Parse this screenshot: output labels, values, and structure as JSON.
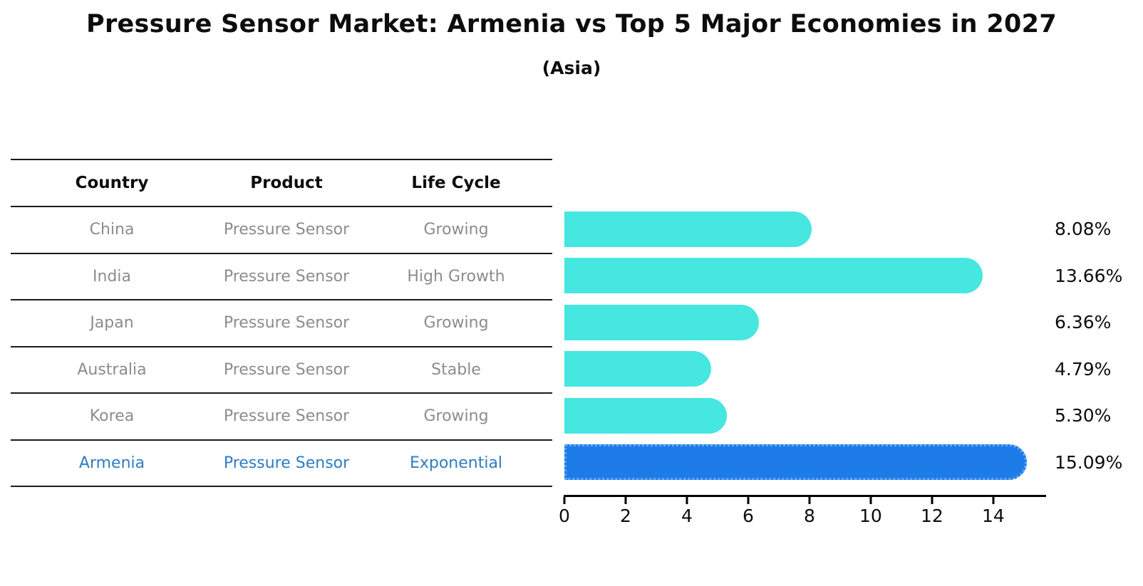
{
  "title": "Pressure Sensor Market: Armenia vs Top 5 Major Economies in 2027",
  "subtitle": "(Asia)",
  "table": {
    "headers": [
      "Country",
      "Product",
      "Life Cycle"
    ],
    "rows": [
      {
        "country": "China",
        "product": "Pressure Sensor",
        "life_cycle": "Growing",
        "highlight": false
      },
      {
        "country": "India",
        "product": "Pressure Sensor",
        "life_cycle": "High Growth",
        "highlight": false
      },
      {
        "country": "Japan",
        "product": "Pressure Sensor",
        "life_cycle": "Growing",
        "highlight": false
      },
      {
        "country": "Australia",
        "product": "Pressure Sensor",
        "life_cycle": "Stable",
        "highlight": false
      },
      {
        "country": "Korea",
        "product": "Pressure Sensor",
        "life_cycle": "Growing",
        "highlight": false
      },
      {
        "country": "Armenia",
        "product": "Pressure Sensor",
        "life_cycle": "Exponential",
        "highlight": true
      }
    ]
  },
  "chart_data": {
    "type": "bar",
    "orientation": "horizontal",
    "title": "Pressure Sensor Market: Armenia vs Top 5 Major Economies in 2027 (Asia)",
    "categories": [
      "China",
      "India",
      "Japan",
      "Australia",
      "Korea",
      "Armenia"
    ],
    "values": [
      8.08,
      13.66,
      6.36,
      4.79,
      5.3,
      15.09
    ],
    "value_labels": [
      "8.08%",
      "13.66%",
      "6.36%",
      "4.79%",
      "5.30%",
      "15.09%"
    ],
    "highlight_index": 5,
    "xlabel": "",
    "ylabel": "",
    "xlim": [
      0,
      15.7
    ],
    "xticks": [
      0,
      2,
      4,
      6,
      8,
      10,
      12,
      14
    ],
    "grid": false,
    "legend": "none"
  },
  "colors": {
    "bar_default": "#45e7e0",
    "bar_highlight": "#1e7ce8",
    "highlight_border": "#5fa7f3",
    "highlight_text": "#2e7cc2",
    "row_text": "#8c8c8c",
    "axis": "#000000"
  }
}
